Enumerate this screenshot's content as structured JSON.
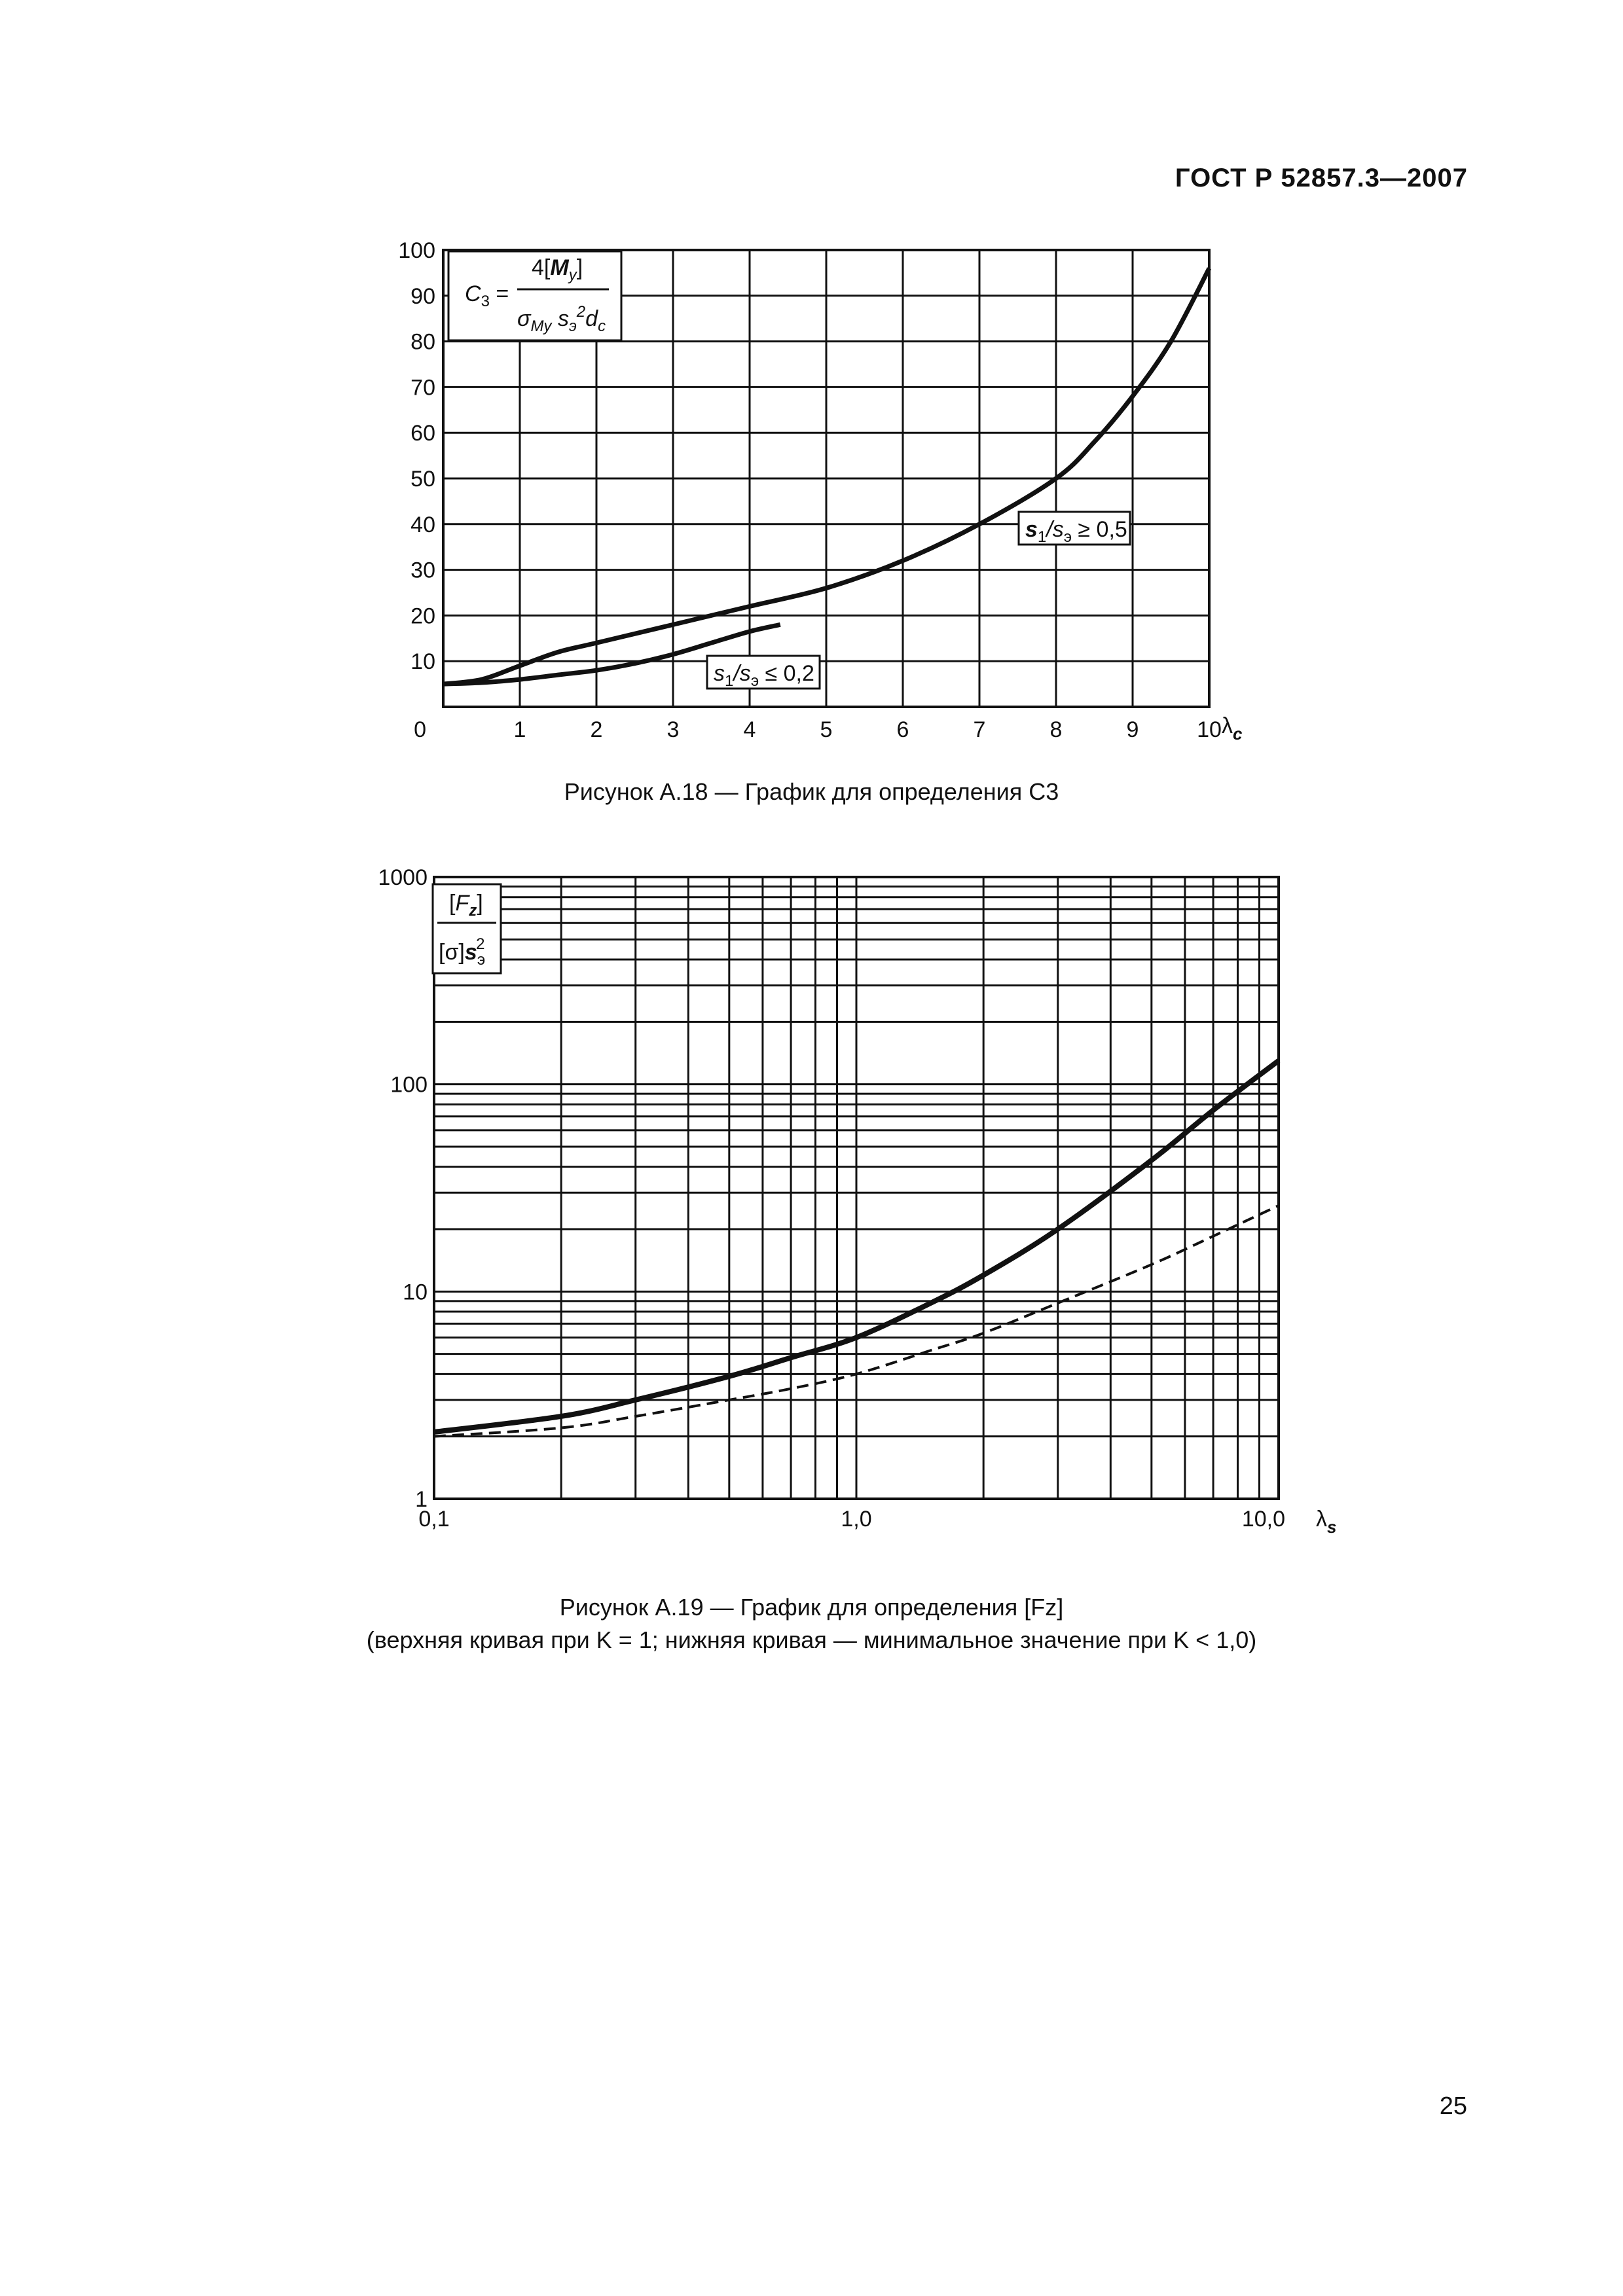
{
  "page": {
    "header": "ГОСТ Р 52857.3—2007",
    "page_number": "25"
  },
  "figures": {
    "a18": {
      "caption": "Рисунок А.18 — График для определения C3",
      "formula": "C3 = 4[My] / (σMy s²э dc)",
      "curve_label_upper": "s1/sэ ≥ 0,5",
      "curve_label_lower": "s1/sэ ≤ 0,2",
      "x_axis_label": "λc"
    },
    "a19": {
      "caption": "Рисунок А.19 — График для определения [Fz]",
      "caption_note": "(верхняя кривая при K = 1; нижняя кривая — минимальное значение при K < 1,0)",
      "formula": "[Fz] / ([σ] s²э)",
      "x_axis_label": "λs"
    }
  },
  "chart_data": [
    {
      "type": "line",
      "title": "",
      "xlabel": "λc",
      "ylabel": "C3 = 4[My] / (σMy s²э dc)",
      "xlim": [
        0,
        10
      ],
      "ylim": [
        0,
        100
      ],
      "x_ticks": [
        "0",
        "1",
        "2",
        "3",
        "4",
        "5",
        "6",
        "7",
        "8",
        "9",
        "10"
      ],
      "y_ticks": [
        "10",
        "20",
        "30",
        "40",
        "50",
        "60",
        "70",
        "80",
        "90",
        "100"
      ],
      "grid": true,
      "series": [
        {
          "name": "s1/sэ ≥ 0,5",
          "style": "solid",
          "x": [
            0,
            0.5,
            1,
            1.5,
            2,
            3,
            4,
            5,
            6,
            7,
            8,
            8.5,
            9,
            9.5,
            10
          ],
          "y": [
            5,
            6,
            9,
            12,
            14,
            18,
            22,
            26,
            32,
            40,
            50,
            58,
            68,
            80,
            96
          ]
        },
        {
          "name": "s1/sэ ≤ 0,2",
          "style": "solid",
          "x": [
            0,
            0.5,
            1,
            1.5,
            2,
            2.5,
            3,
            3.5,
            4,
            4.4
          ],
          "y": [
            5,
            5.3,
            6,
            7,
            8,
            9.5,
            11.5,
            14,
            16.5,
            18
          ]
        }
      ]
    },
    {
      "type": "line",
      "title": "",
      "xlabel": "λs",
      "ylabel": "[Fz] / ([σ] s²э)",
      "x_scale": "log",
      "y_scale": "log",
      "xlim": [
        0.1,
        10
      ],
      "ylim": [
        1,
        1000
      ],
      "x_ticks": [
        "0,1",
        "1,0",
        "10,0"
      ],
      "y_ticks": [
        "1",
        "10",
        "100",
        "1000"
      ],
      "grid": true,
      "series": [
        {
          "name": "K = 1",
          "style": "solid",
          "x": [
            0.1,
            0.2,
            0.3,
            0.5,
            0.7,
            1,
            1.5,
            2,
            3,
            5,
            7,
            10
          ],
          "y": [
            2.1,
            2.5,
            3.0,
            3.9,
            4.8,
            6.0,
            8.8,
            12,
            20,
            43,
            75,
            130
          ]
        },
        {
          "name": "K < 1,0",
          "style": "dashed",
          "x": [
            0.1,
            0.2,
            0.3,
            0.5,
            0.7,
            1,
            1.5,
            2,
            3,
            5,
            7,
            10
          ],
          "y": [
            2.0,
            2.2,
            2.5,
            3.0,
            3.4,
            4.0,
            5.2,
            6.3,
            8.8,
            13.5,
            18.5,
            26
          ]
        }
      ]
    }
  ]
}
